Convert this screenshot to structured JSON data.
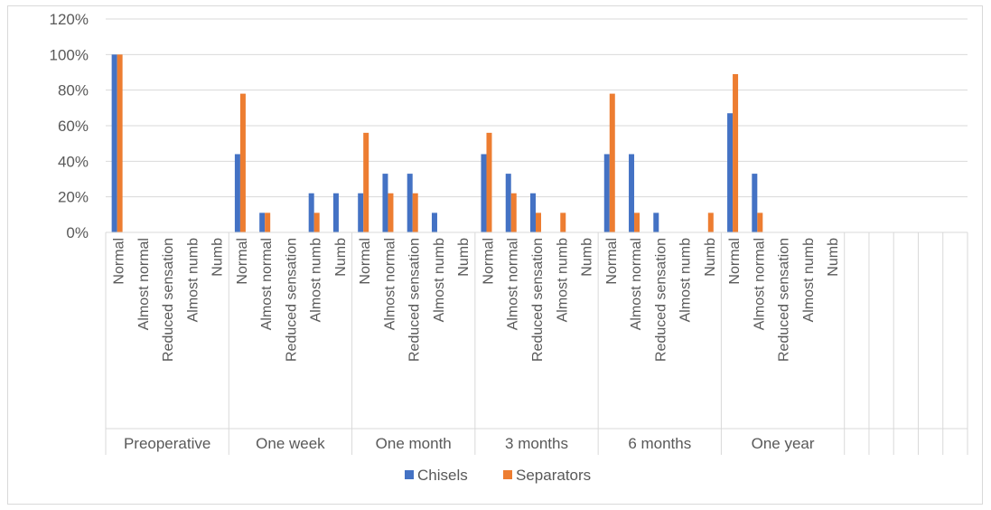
{
  "chart_data": {
    "type": "bar",
    "title": "",
    "xlabel": "",
    "ylabel": "",
    "ylim": [
      0,
      120
    ],
    "yticks": [
      "0%",
      "20%",
      "40%",
      "60%",
      "80%",
      "100%",
      "120%"
    ],
    "grid": "horizontal",
    "legend_position": "bottom",
    "groups": [
      "Preoperative",
      "One week",
      "One month",
      "3 months",
      "6 months",
      "One year"
    ],
    "categories": [
      "Normal",
      "Almost normal",
      "Reduced sensation",
      "Almost numb",
      "Numb"
    ],
    "empty_trailing_columns": 5,
    "series": [
      {
        "name": "Chisels",
        "color": "#4472C4",
        "values": [
          [
            100,
            0,
            0,
            0,
            0
          ],
          [
            44,
            11,
            0,
            22,
            22
          ],
          [
            22,
            33,
            33,
            11,
            0
          ],
          [
            44,
            33,
            22,
            0,
            0
          ],
          [
            44,
            44,
            11,
            0,
            0
          ],
          [
            67,
            33,
            0,
            0,
            0
          ]
        ]
      },
      {
        "name": "Separators",
        "color": "#ED7D31",
        "values": [
          [
            100,
            0,
            0,
            0,
            0
          ],
          [
            78,
            11,
            0,
            11,
            0
          ],
          [
            56,
            22,
            22,
            0,
            0
          ],
          [
            56,
            22,
            11,
            11,
            0
          ],
          [
            78,
            11,
            0,
            0,
            11
          ],
          [
            89,
            11,
            0,
            0,
            0
          ]
        ]
      }
    ]
  }
}
